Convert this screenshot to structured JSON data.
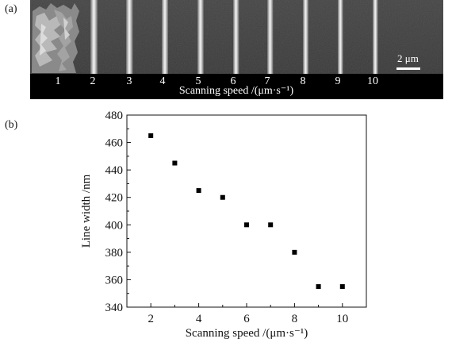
{
  "panel_a": {
    "label": "(a)",
    "lane_numbers": [
      "1",
      "2",
      "3",
      "4",
      "5",
      "6",
      "7",
      "8",
      "9",
      "10"
    ],
    "caption": "Scanning speed /(μm·s⁻¹)",
    "scale_bar_label": "2 μm"
  },
  "panel_b": {
    "label": "(b)"
  },
  "chart_data": {
    "type": "scatter",
    "title": "",
    "xlabel": "Scanning speed /(μm·s⁻¹)",
    "ylabel": "Line width /nm",
    "xlim": [
      1,
      11
    ],
    "ylim": [
      340,
      480
    ],
    "xticks": [
      2,
      4,
      6,
      8,
      10
    ],
    "yticks": [
      340,
      360,
      380,
      400,
      420,
      440,
      460,
      480
    ],
    "grid": false,
    "series": [
      {
        "x": [
          2,
          3,
          4,
          5,
          6,
          7,
          8,
          9,
          10
        ],
        "y": [
          465,
          445,
          425,
          420,
          400,
          400,
          380,
          355,
          355
        ]
      }
    ]
  }
}
